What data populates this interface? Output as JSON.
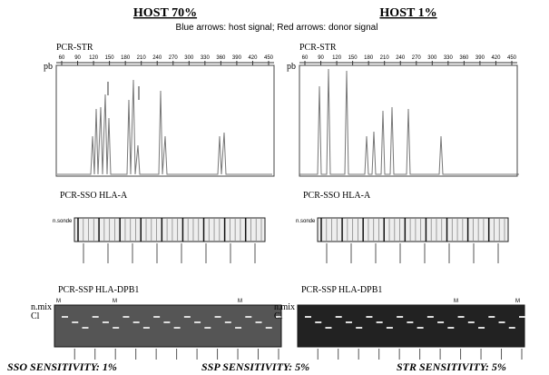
{
  "legend": "Blue arrows: host signal; Red arrows: donor signal",
  "panels": [
    {
      "title": "HOST 70%",
      "str": {
        "label": "PCR-STR",
        "unit": "pb",
        "scale": [
          "60",
          "90",
          "120",
          "150",
          "180",
          "210",
          "240",
          "270",
          "300",
          "330",
          "360",
          "390",
          "420",
          "450"
        ]
      },
      "sso": {
        "label": "PCR-SSO HLA-A",
        "row_label": "n.sonde"
      },
      "ssp": {
        "label": "PCR-SSP HLA-DPB1",
        "row_labels": [
          "n.mix",
          "Cl"
        ],
        "markers": [
          "M",
          "M",
          "M"
        ]
      }
    },
    {
      "title": "HOST 1%",
      "str": {
        "label": "PCR-STR",
        "unit": "pb",
        "scale": [
          "60",
          "90",
          "120",
          "150",
          "180",
          "210",
          "240",
          "270",
          "300",
          "330",
          "360",
          "390",
          "420",
          "450"
        ]
      },
      "sso": {
        "label": "PCR-SSO HLA-A",
        "row_label": "n.sonde"
      },
      "ssp": {
        "label": "PCR-SSP HLA-DPB1",
        "row_labels": [
          "n.mix",
          "Cl"
        ],
        "markers": [
          "M",
          "M"
        ]
      }
    }
  ],
  "footer": [
    "SSO SENSITIVITY: 1%",
    "SSP SENSITIVITY: 5%",
    "STR SENSITIVITY: 5%"
  ]
}
